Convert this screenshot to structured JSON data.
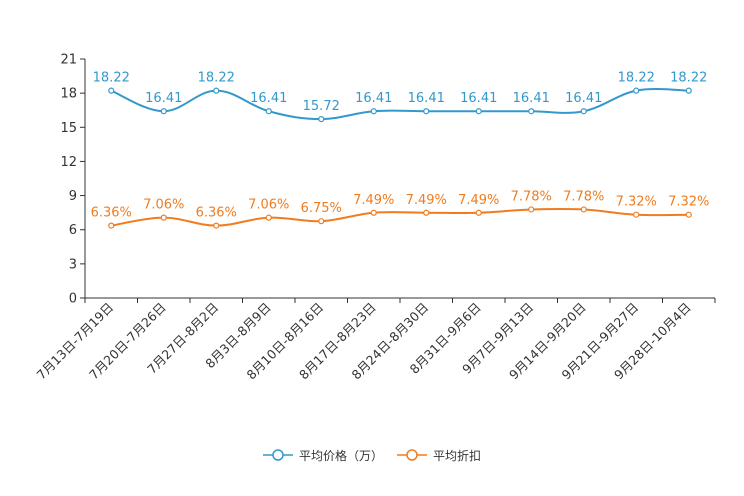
{
  "chart_data": {
    "type": "line",
    "title": "",
    "xlabel": "",
    "ylabel": "",
    "ylim": [
      0,
      21
    ],
    "yticks": [
      0,
      3,
      6,
      9,
      12,
      15,
      18,
      21
    ],
    "grid": false,
    "legend_position": "bottom",
    "categories": [
      "7月13日-7月19日",
      "7月20日-7月26日",
      "7月27日-8月2日",
      "8月3日-8月9日",
      "8月10日-8月16日",
      "8月17日-8月23日",
      "8月24日-8月30日",
      "8月31日-9月6日",
      "9月7日-9月13日",
      "9月14日-9月20日",
      "9月21日-9月27日",
      "9月28日-10月4日"
    ],
    "series": [
      {
        "name": "平均价格（万）",
        "color": "#3398cc",
        "values": [
          18.22,
          16.41,
          18.22,
          16.41,
          15.72,
          16.41,
          16.41,
          16.41,
          16.41,
          16.41,
          18.22,
          18.22
        ],
        "labels": [
          "18.22",
          "16.41",
          "18.22",
          "16.41",
          "15.72",
          "16.41",
          "16.41",
          "16.41",
          "16.41",
          "16.41",
          "18.22",
          "18.22"
        ]
      },
      {
        "name": "平均折扣",
        "color": "#f07c1f",
        "values": [
          6.36,
          7.06,
          6.36,
          7.06,
          6.75,
          7.49,
          7.49,
          7.49,
          7.78,
          7.78,
          7.32,
          7.32
        ],
        "labels": [
          "6.36%",
          "7.06%",
          "6.36%",
          "7.06%",
          "6.75%",
          "7.49%",
          "7.49%",
          "7.49%",
          "7.78%",
          "7.78%",
          "7.32%",
          "7.32%"
        ]
      }
    ]
  }
}
